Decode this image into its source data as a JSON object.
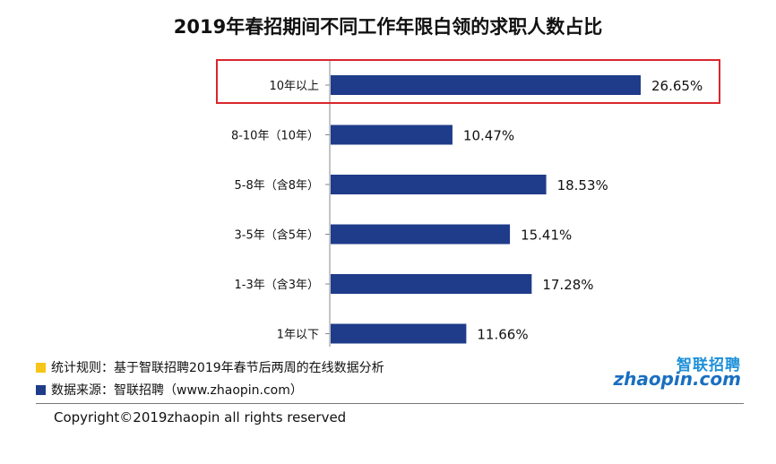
{
  "chart_data": {
    "type": "bar",
    "orientation": "horizontal",
    "title": "2019年春招期间不同工作年限白领的求职人数占比",
    "categories": [
      "10年以上",
      "8-10年（10年）",
      "5-8年（含8年）",
      "3-5年（含5年）",
      "1-3年（含3年）",
      "1年以下"
    ],
    "values": [
      26.65,
      10.47,
      18.53,
      15.41,
      17.28,
      11.66
    ],
    "value_labels": [
      "26.65%",
      "10.47%",
      "18.53%",
      "15.41%",
      "17.28%",
      "11.66%"
    ],
    "unit": "%",
    "xlim": [
      0,
      26.65
    ],
    "bar_color": "#1f3c8a",
    "highlighted_category": "10年以上",
    "highlight_color": "#d9262c",
    "grid": false
  },
  "notes": {
    "rule_text": "统计规则：基于智联招聘2019年春节后两周的在线数据分析",
    "rule_marker_color": "#f5c518",
    "source_text": "数据来源：智联招聘（www.zhaopin.com）",
    "source_marker_color": "#1f3c8a"
  },
  "logo": {
    "cn": "智联招聘",
    "en": "zhaopin.com"
  },
  "copyright": "Copyright©2019zhaopin all rights reserved"
}
